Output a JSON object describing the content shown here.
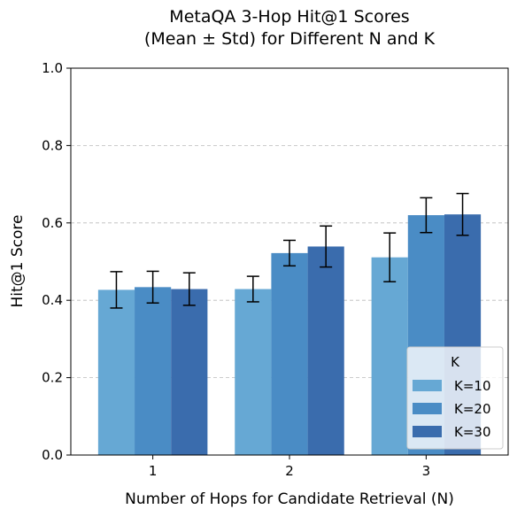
{
  "chart_data": {
    "type": "bar",
    "title": [
      "MetaQA 3-Hop Hit@1 Scores",
      "(Mean ± Std) for Different N and K"
    ],
    "xlabel": "Number of Hops for Candidate Retrieval (N)",
    "ylabel": "Hit@1 Score",
    "categories": [
      "1",
      "2",
      "3"
    ],
    "ylim": [
      0,
      1
    ],
    "yticks": [
      "0.0",
      "0.2",
      "0.4",
      "0.6",
      "0.8",
      "1.0"
    ],
    "grid": "y-dashed",
    "legend": {
      "title": "K",
      "placement": "bottom-right"
    },
    "series": [
      {
        "name": "K=10",
        "color": "#66a8d4",
        "values": [
          0.427,
          0.429,
          0.511
        ],
        "std": [
          0.047,
          0.033,
          0.063
        ]
      },
      {
        "name": "K=20",
        "color": "#4a8cc5",
        "values": [
          0.434,
          0.522,
          0.62
        ],
        "std": [
          0.041,
          0.033,
          0.045
        ]
      },
      {
        "name": "K=30",
        "color": "#3a6cad",
        "values": [
          0.429,
          0.539,
          0.622
        ],
        "std": [
          0.042,
          0.053,
          0.054
        ]
      }
    ]
  }
}
